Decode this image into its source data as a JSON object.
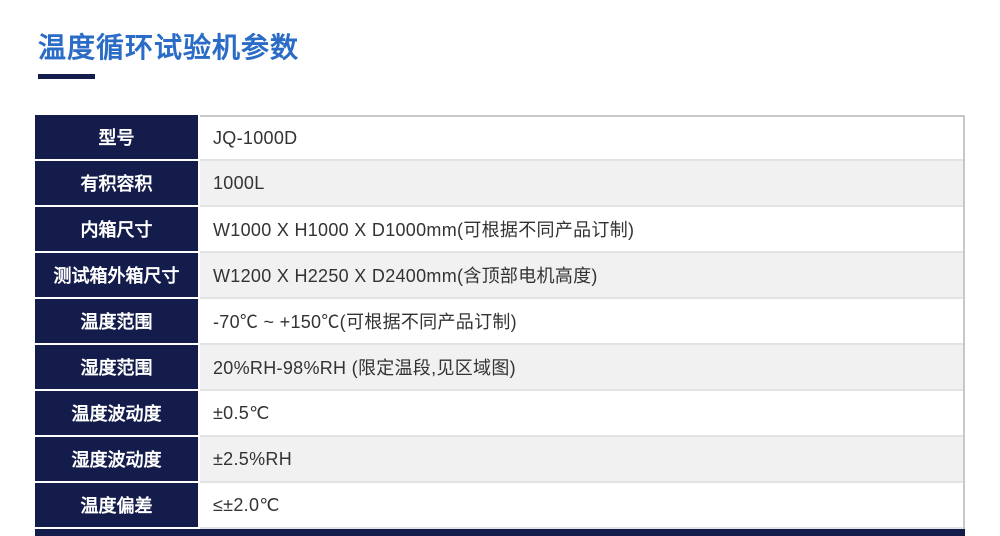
{
  "page": {
    "title": "温度循环试验机参数"
  },
  "colors": {
    "accent_blue": "#2b6cc6",
    "navy": "#141c4b",
    "row_alt_bg": "#f1f1f1",
    "border_gray": "#c8c8c8",
    "value_text": "#333333"
  },
  "table": {
    "rows": [
      {
        "label": "型号",
        "value": "JQ-1000D"
      },
      {
        "label": "有积容积",
        "value": "1000L"
      },
      {
        "label": "内箱尺寸",
        "value": "W1000 X H1000 X D1000mm(可根据不同产品订制)"
      },
      {
        "label": "测试箱外箱尺寸",
        "value": "W1200 X H2250 X D2400mm(含顶部电机高度)"
      },
      {
        "label": "温度范围",
        "value": "-70℃ ~ +150℃(可根据不同产品订制)"
      },
      {
        "label": "湿度范围",
        "value": "20%RH-98%RH (限定温段,见区域图)"
      },
      {
        "label": "温度波动度",
        "value": "±0.5℃"
      },
      {
        "label": "湿度波动度",
        "value": "±2.5%RH"
      },
      {
        "label": "温度偏差",
        "value": "≤±2.0℃"
      }
    ]
  }
}
